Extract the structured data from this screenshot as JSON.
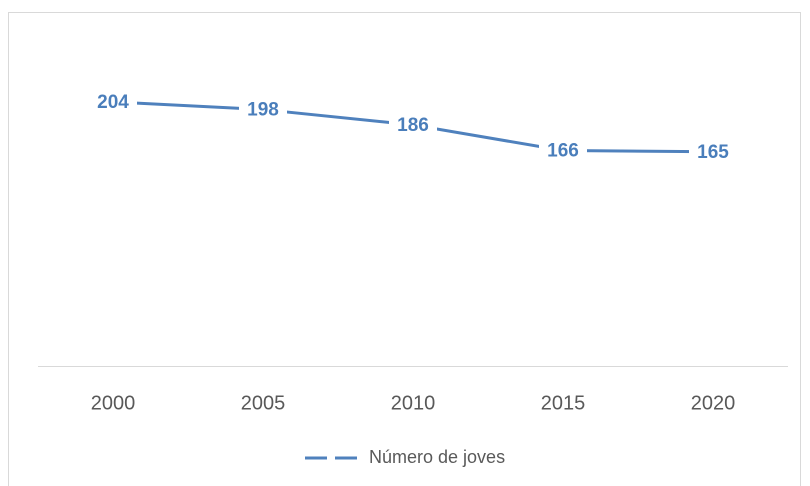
{
  "chart_data": {
    "type": "line",
    "categories": [
      "2000",
      "2005",
      "2010",
      "2015",
      "2020"
    ],
    "series": [
      {
        "name": "Número de joves",
        "color": "#4f81bd",
        "values": [
          204,
          198,
          186,
          166,
          165
        ]
      }
    ],
    "ylim": [
      0,
      250
    ],
    "legend": "bottom"
  }
}
